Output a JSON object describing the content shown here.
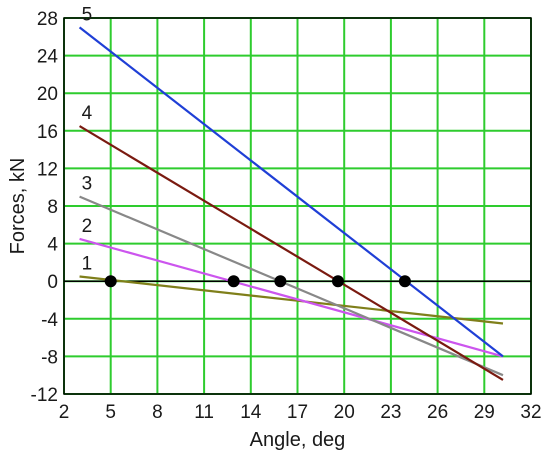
{
  "chart_data": {
    "type": "line",
    "title": "",
    "xlabel": "Angle, deg",
    "ylabel": "Forces, kN",
    "xlim": [
      2,
      32
    ],
    "ylim": [
      -12,
      28
    ],
    "xticks": [
      2,
      5,
      8,
      11,
      14,
      17,
      20,
      23,
      26,
      29,
      32
    ],
    "yticks": [
      -12,
      -8,
      -4,
      0,
      4,
      8,
      12,
      16,
      20,
      24,
      28
    ],
    "grid": true,
    "legend": "none",
    "series": [
      {
        "name": "1",
        "color": "#7f7f1a",
        "x": [
          3,
          30.2
        ],
        "y": [
          0.5,
          -4.5
        ]
      },
      {
        "name": "2",
        "color": "#cc55ee",
        "x": [
          3,
          30.2
        ],
        "y": [
          4.5,
          -8.0
        ]
      },
      {
        "name": "3",
        "color": "#888888",
        "x": [
          3,
          30.2
        ],
        "y": [
          9.0,
          -10.0
        ]
      },
      {
        "name": "4",
        "color": "#7a1a10",
        "x": [
          3,
          30.2
        ],
        "y": [
          16.5,
          -10.5
        ]
      },
      {
        "name": "5",
        "color": "#1f3fd6",
        "x": [
          3,
          30.2
        ],
        "y": [
          27.0,
          -8.0
        ]
      }
    ],
    "markers": [
      {
        "x": 5.0,
        "y": 0
      },
      {
        "x": 12.9,
        "y": 0
      },
      {
        "x": 15.9,
        "y": 0
      },
      {
        "x": 19.6,
        "y": 0
      },
      {
        "x": 23.9,
        "y": 0
      }
    ],
    "colors": {
      "grid": "#2ecc2e",
      "zero_line": "#000000",
      "marker": "#000000",
      "frame": "#000000"
    }
  }
}
